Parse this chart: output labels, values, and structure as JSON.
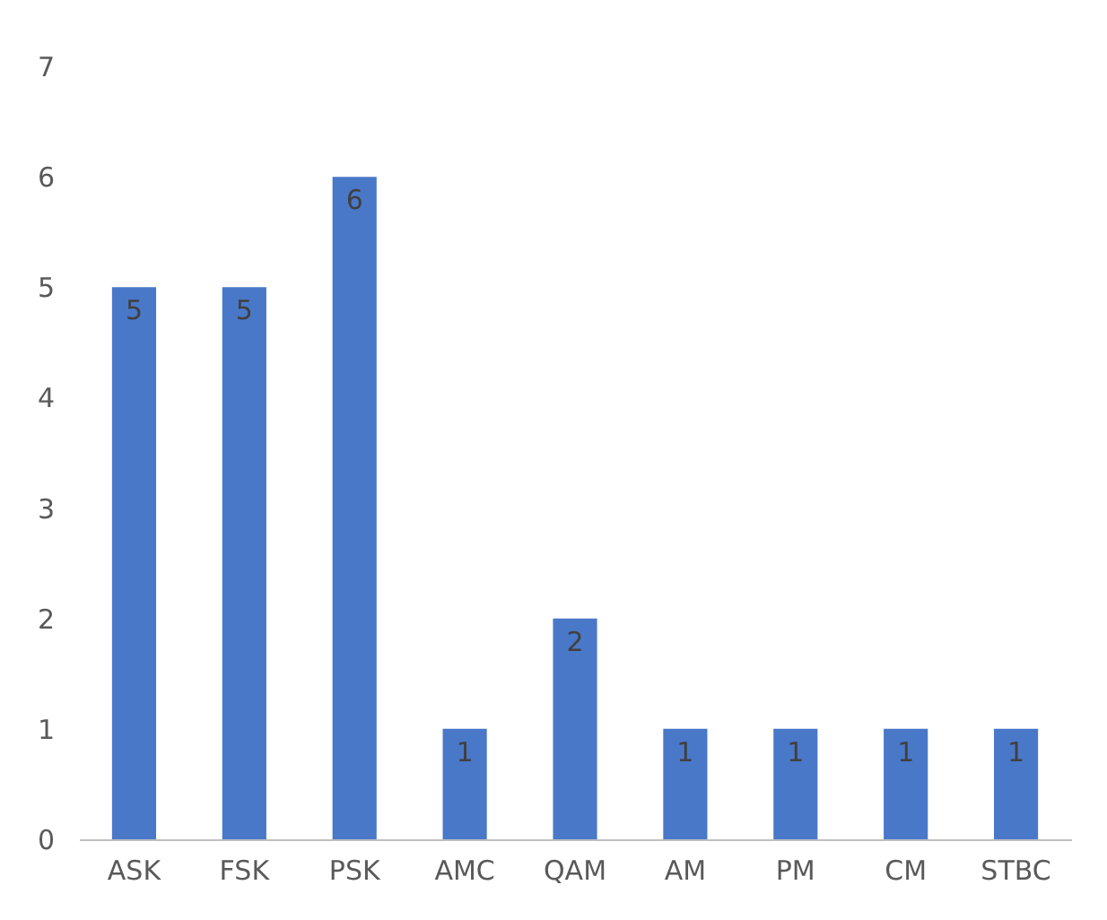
{
  "chart_data": {
    "type": "bar",
    "categories": [
      "ASK",
      "FSK",
      "PSK",
      "AMC",
      "QAM",
      "AM",
      "PM",
      "CM",
      "STBC"
    ],
    "values": [
      5,
      5,
      6,
      1,
      2,
      1,
      1,
      1,
      1
    ],
    "color": "#4a78c8",
    "ylim": [
      0,
      7
    ],
    "yticks": [
      0,
      1,
      2,
      3,
      4,
      5,
      6,
      7
    ],
    "data_labels": true,
    "grid": false
  }
}
